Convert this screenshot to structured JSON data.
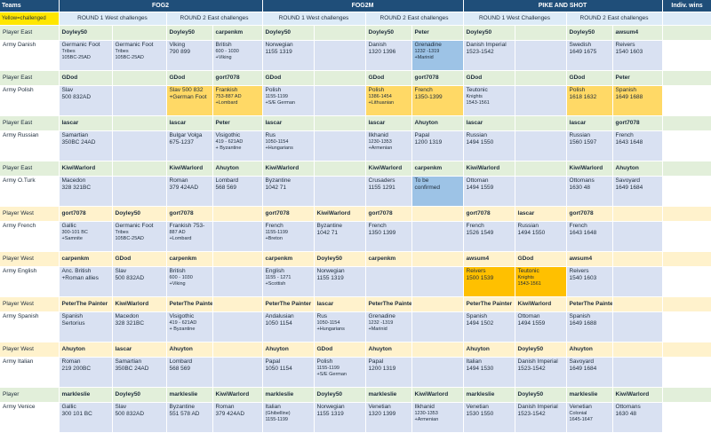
{
  "header": {
    "teams": "Teams",
    "legend": "Yellow=challenged",
    "groups": [
      "FOG2",
      "FOG2M",
      "PIKE AND SHOT",
      "Indiv. wins"
    ],
    "rounds": [
      "ROUND 1 West challenges",
      "ROUND 2 East challenges",
      "ROUND 1 West challenges",
      "ROUND 2 East challenges",
      "ROUND 1 West Challenges",
      "ROUND 2 East challenges"
    ]
  },
  "rows": [
    {
      "type": "east",
      "label": "Player East",
      "cells": [
        "Doyley50",
        "",
        "Doyley50",
        "carpenkm",
        "Doyley50",
        "",
        "Doyley50",
        "Peter",
        "Doyley50",
        "",
        "Doyley50",
        "awsum4"
      ]
    },
    {
      "type": "army",
      "label": "Army Danish",
      "cells": [
        [
          "Germanic Foot",
          "Tribes",
          "105BC-25AD"
        ],
        [
          "Germanic Foot",
          "Tribes",
          "105BC-25AD"
        ],
        [
          "Viking",
          "790 899"
        ],
        [
          "British",
          "600 - 1030",
          "+Viking"
        ],
        [
          "Norwegian",
          "1155 1319"
        ],
        [],
        [
          "Danish",
          "1320 1396"
        ],
        [
          "Grenadine",
          "1232 -1319",
          "+Marinid"
        ],
        [
          "Danish Imperial",
          "1523-1542"
        ],
        [],
        [
          "Swedish",
          "1649 1675"
        ],
        [
          "Reivers",
          "1540 1603"
        ]
      ]
    },
    {
      "type": "east",
      "label": "Player East",
      "cells": [
        "GDod",
        "",
        "GDod",
        "gort7078",
        "GDod",
        "",
        "GDod",
        "gort7078",
        "GDod",
        "",
        "GDod",
        "Peter"
      ]
    },
    {
      "type": "army",
      "label": "Army Polish",
      "cells": [
        [
          "Slav",
          "500 832AD"
        ],
        [],
        [
          "Slav 500 832",
          "+German Foot"
        ],
        [
          "Frankish",
          "753-887 AD",
          "+Lombard"
        ],
        [
          "Polish",
          "1155-1199",
          "+S/E German"
        ],
        [],
        [
          "Polish",
          "1386-1454",
          "+Lithuanian"
        ],
        [
          "French",
          "1350-1399"
        ],
        [
          "Teutonic",
          "Knights",
          "1543-1561"
        ],
        [],
        [
          "Polish",
          "1618 1632"
        ],
        [
          "Spanish",
          "1649 1688"
        ]
      ]
    },
    {
      "type": "east",
      "label": "Player East",
      "cells": [
        "lascar",
        "",
        "lascar",
        "Peter",
        "lascar",
        "",
        "lascar",
        "Ahuyton",
        "lascar",
        "",
        "lascar",
        "gort7078"
      ]
    },
    {
      "type": "army",
      "label": "Army Russian",
      "cells": [
        [
          "Samartian",
          "350BC 24AD"
        ],
        [],
        [
          "Bulgar Volga",
          "675-1237"
        ],
        [
          "Visigothic",
          "419 - 621AD",
          "+ Byzantine"
        ],
        [
          "Rus",
          "1050-1154",
          "+Hungarians"
        ],
        [],
        [
          "Ilkhanid",
          "1230-1353",
          "+Armenian"
        ],
        [
          "Papal",
          "1200 1319"
        ],
        [
          "Russian",
          "1494 1550"
        ],
        [],
        [
          "Russian",
          "1560 1597"
        ],
        [
          "French",
          "1643 1648"
        ]
      ]
    },
    {
      "type": "east",
      "label": "Player East",
      "cells": [
        "KiwiWarlord",
        "",
        "KiwiWarlord",
        "Ahuyton",
        "KiwiWarlord",
        "",
        "KiwiWarlord",
        "carpenkm",
        "KiwiWarlord",
        "",
        "KiwiWarlord",
        "Ahuyton"
      ]
    },
    {
      "type": "army",
      "label": "Army O.Turk",
      "cells": [
        [
          "Macedon",
          "328 321BC"
        ],
        [],
        [
          "Roman",
          "379 424AD"
        ],
        [
          "Lombard",
          "568 569"
        ],
        [
          "Byzantine",
          "1042 71"
        ],
        [],
        [
          "Crusaders",
          "1155 1291"
        ],
        [
          "To be",
          "confirmed"
        ],
        [
          "Ottoman",
          "1494 1559"
        ],
        [],
        [
          "Ottomans",
          "1630 48"
        ],
        [
          "Savoyard",
          "1649 1684"
        ]
      ]
    },
    {
      "type": "west",
      "label": "Player West",
      "cells": [
        "gort7078",
        "Doyley50",
        "gort7078",
        "",
        "gort7078",
        "KiwiWarlord",
        "gort7078",
        "",
        "gort7078",
        "lascar",
        "gort7078",
        ""
      ]
    },
    {
      "type": "army",
      "label": "Army French",
      "cells": [
        [
          "Gallic",
          "300-101 BC",
          "+Samnite"
        ],
        [
          "Germanic Foot",
          "Tribes",
          "105BC-25AD"
        ],
        [
          "Frankish 753-",
          "887 AD",
          "+Lombard"
        ],
        [],
        [
          "French",
          "1155-1199",
          "+Breton"
        ],
        [
          "Byzantine",
          "1042 71"
        ],
        [
          "French",
          "1350 1399"
        ],
        [],
        [
          "French",
          "1526 1549"
        ],
        [
          "Russian",
          "1494 1550"
        ],
        [
          "French",
          "1643 1648"
        ],
        []
      ]
    },
    {
      "type": "west",
      "label": "Player West",
      "cells": [
        "carpenkm",
        "GDod",
        "carpenkm",
        "",
        "carpenkm",
        "Doyley50",
        "carpenkm",
        "",
        "awsum4",
        "GDod",
        "awsum4",
        ""
      ]
    },
    {
      "type": "army",
      "label": "Army English",
      "cells": [
        [
          "Anc. British",
          "+Roman allies"
        ],
        [
          "Slav",
          "500 832AD"
        ],
        [
          "British",
          "600 - 1030",
          "+Viking"
        ],
        [],
        [
          "English",
          "1155 - 1271",
          "+Scottish"
        ],
        [
          "Norwegian",
          "1155 1319"
        ],
        [],
        [],
        [
          "Reivers",
          "1500 1539"
        ],
        [
          "Teutonic",
          "Knights",
          "1543-1561"
        ],
        [
          "Reivers",
          "1540 1603"
        ],
        []
      ]
    },
    {
      "type": "west",
      "label": "Player West",
      "cells": [
        "PeterThe Painter",
        "KiwiWarlord",
        "PeterThe Painter",
        "",
        "PeterThe Painter",
        "lascar",
        "PeterThe Painter",
        "",
        "PeterThe Painter",
        "KiwiWarlord",
        "PeterThe Painter",
        ""
      ]
    },
    {
      "type": "army",
      "label": "Army Spanish",
      "cells": [
        [
          "Spanish",
          "Sertorius"
        ],
        [
          "Macedon",
          "328 321BC"
        ],
        [
          "Visigothic",
          "419 - 621AD",
          "+ Byzantine"
        ],
        [],
        [
          "Andalusian",
          "1050 1154"
        ],
        [
          "Rus",
          "1050-1154",
          "+Hungarians"
        ],
        [
          "Grenadine",
          "1232 -1319",
          "+Marinid"
        ],
        [],
        [
          "Spanish",
          "1494 1502"
        ],
        [
          "Ottoman",
          "1494 1559"
        ],
        [
          "Spanish",
          "1649 1688"
        ],
        []
      ]
    },
    {
      "type": "west",
      "label": "Player West",
      "cells": [
        "Ahuyton",
        "lascar",
        "Ahuyton",
        "",
        "Ahuyton",
        "GDod",
        "Ahuyton",
        "",
        "Ahuyton",
        "Doyley50",
        "Ahuyton",
        ""
      ]
    },
    {
      "type": "army",
      "label": "Army Italian",
      "cells": [
        [
          "Roman",
          "219 200BC"
        ],
        [
          "Samartian",
          "350BC 24AD"
        ],
        [
          "Lombard",
          "568 569"
        ],
        [],
        [
          "Papal",
          "1050 1154"
        ],
        [
          "Polish",
          "1155-1199",
          "+S/E German"
        ],
        [
          "Papal",
          "1200 1319"
        ],
        [],
        [
          "Italian",
          "1494 1530"
        ],
        [
          "Danish Imperial",
          "1523-1542"
        ],
        [
          "Savoyard",
          "1649 1684"
        ],
        []
      ]
    },
    {
      "type": "player",
      "label": "Player",
      "cells": [
        "markleslie",
        "Doyley50",
        "markleslie",
        "KiwiWarlord",
        "markleslie",
        "Doyley50",
        "markleslie",
        "KiwiWarlord",
        "markleslie",
        "Doyley50",
        "markleslie",
        "KiwiWarlord"
      ]
    },
    {
      "type": "army",
      "label": "Army Venice",
      "cells": [
        [
          "Gallic",
          "300 101 BC"
        ],
        [
          "Slav",
          "500 832AD"
        ],
        [
          "Byzantine",
          "551 578 AD"
        ],
        [
          "Roman",
          "379 424AD"
        ],
        [
          "Italian",
          "(Ghibelline)",
          "1155-1199"
        ],
        [
          "Norwegian",
          "1155 1319"
        ],
        [
          "Venetian",
          "1320 1399"
        ],
        [
          "Ilkhanid",
          "1230-1353",
          "+Armenian"
        ],
        [
          "Venetian",
          "1530 1550"
        ],
        [
          "Danish Imperial",
          "1523-1542"
        ],
        [
          "Venetian",
          "Colonial",
          "1645-1647"
        ],
        [
          "Ottomans",
          "1630 48"
        ]
      ]
    }
  ],
  "colors": {
    "header": "#1f4e79",
    "subheader": "#ddebf7",
    "east": "#e2efda",
    "west": "#fff2cc",
    "army": "#d9e1f2",
    "yellow": "#ffd966",
    "orange": "#ffc000",
    "blue": "#9dc3e6"
  }
}
